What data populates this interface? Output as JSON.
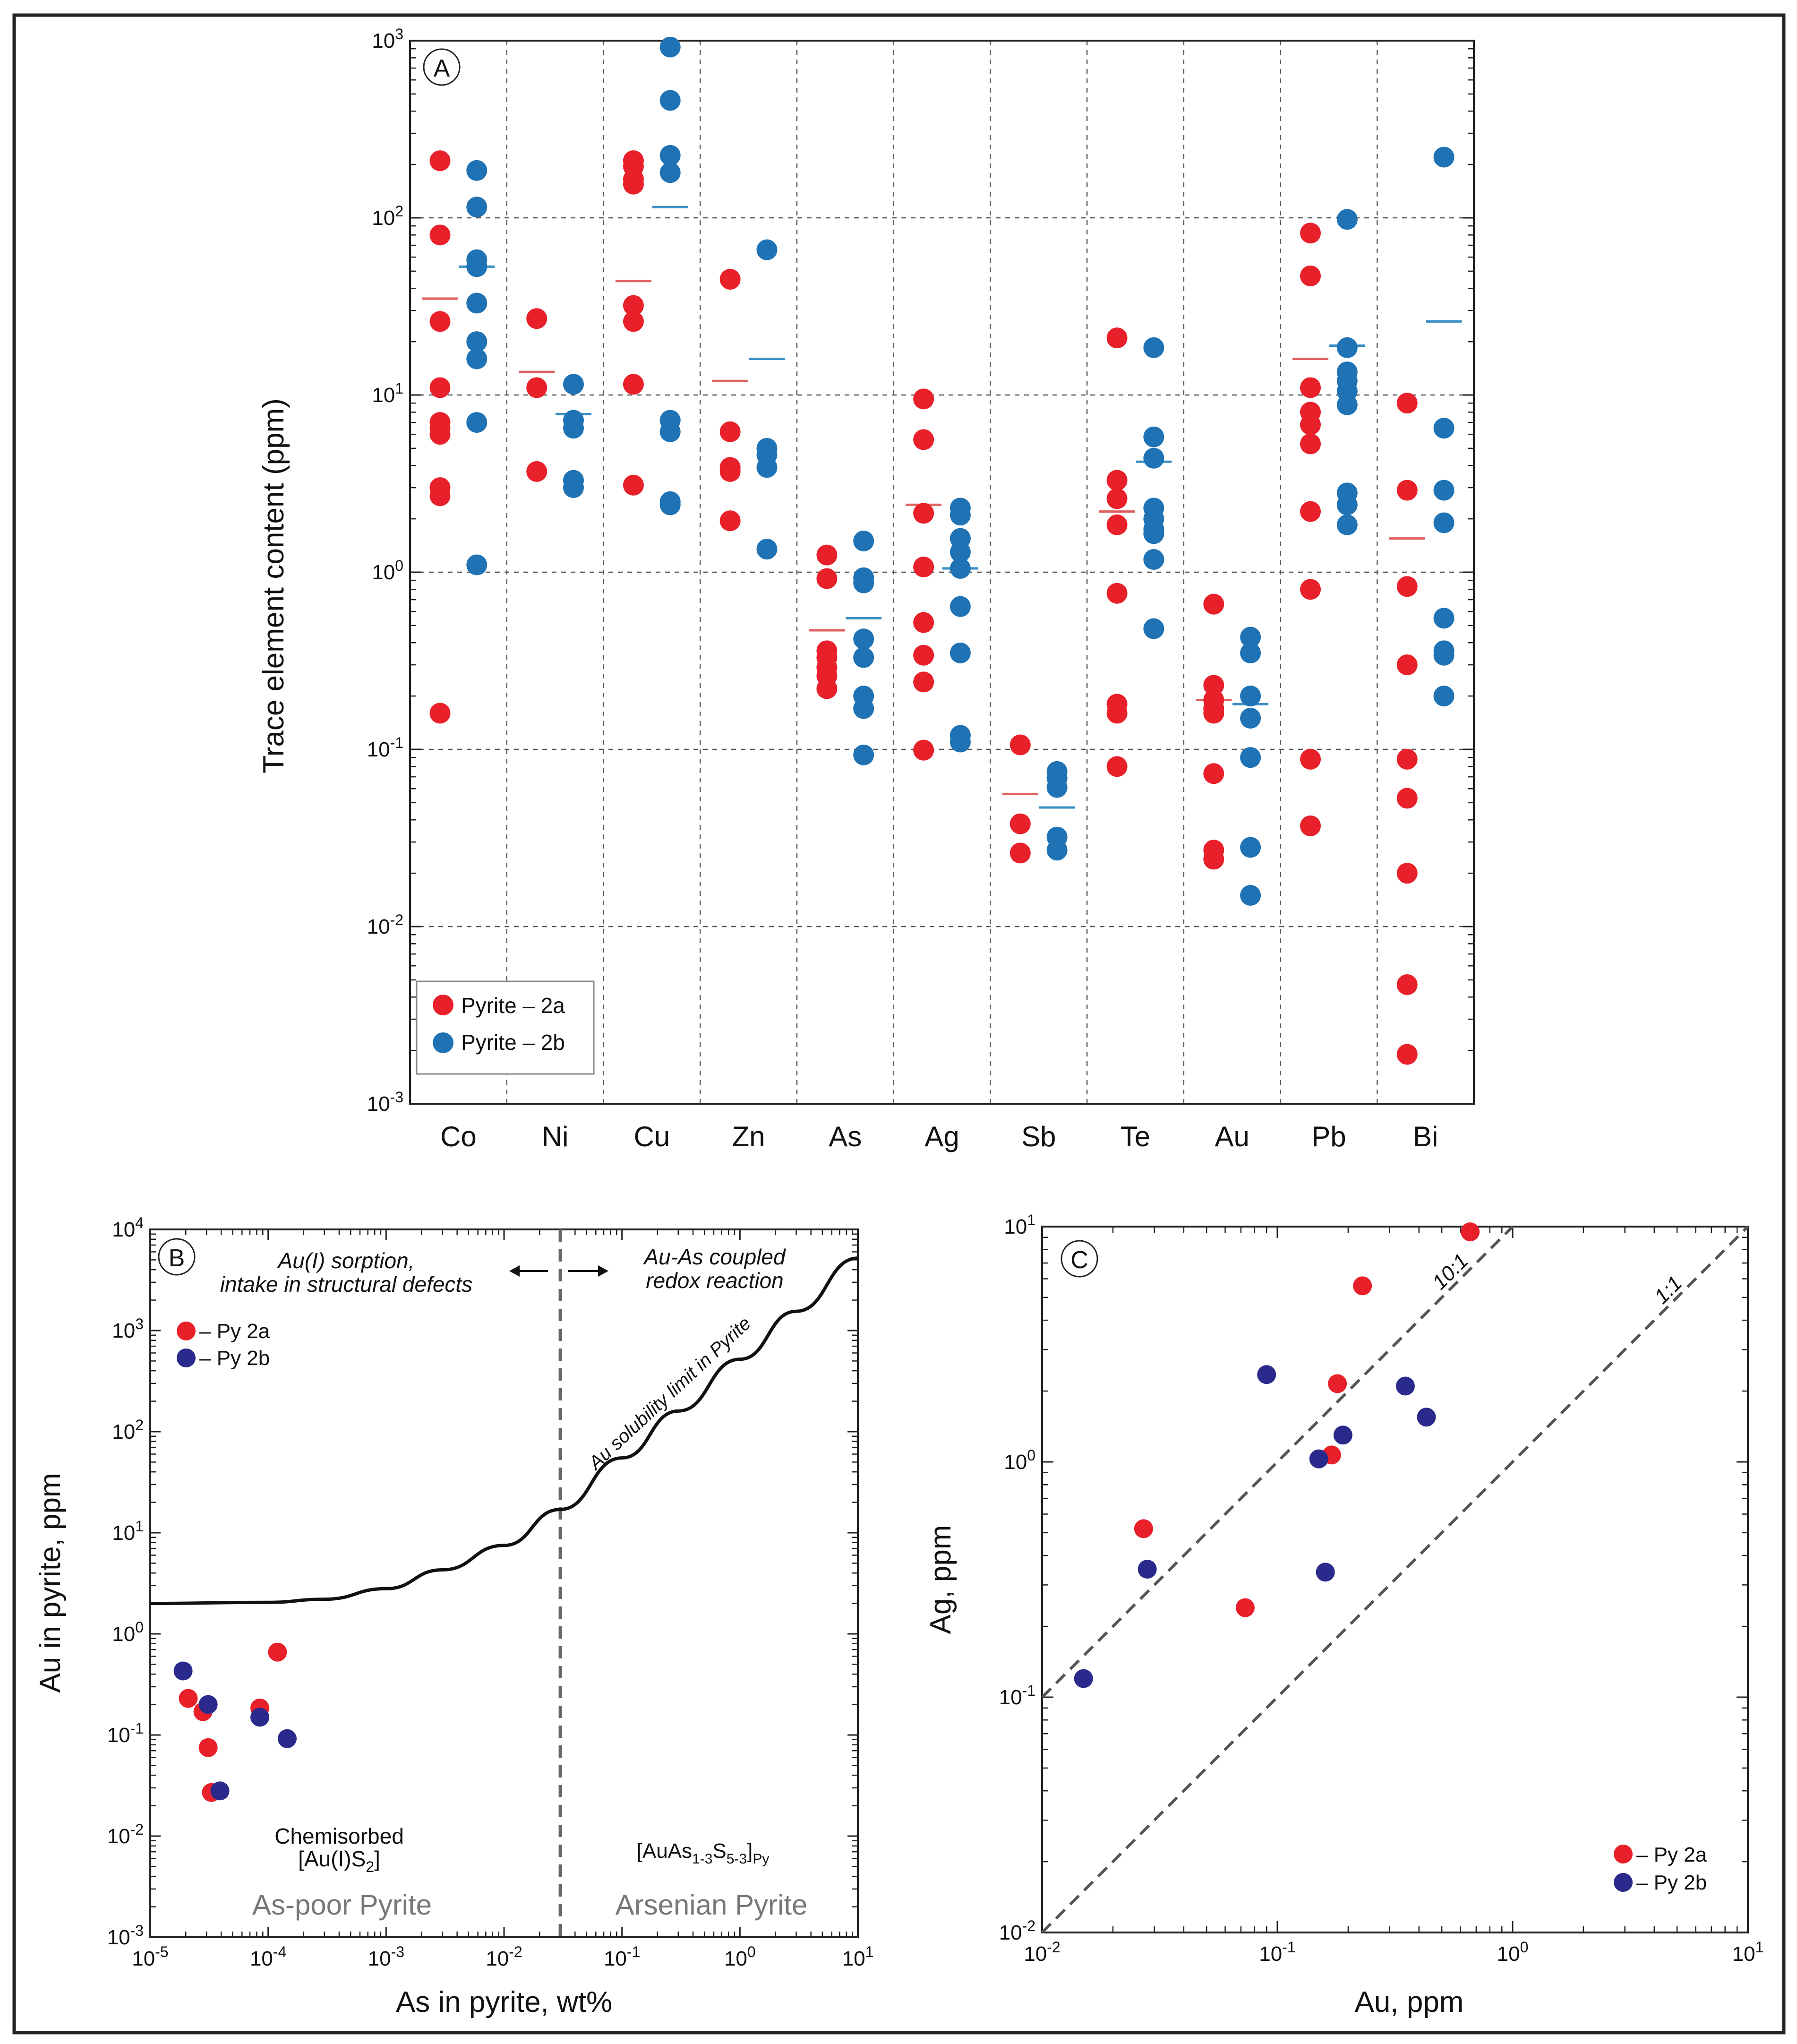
{
  "colors": {
    "py2a": "#e8202a",
    "py2b_A": "#1f73b4",
    "py2b_BC": "#2a2a8c",
    "mean2a": "#e06060",
    "mean2b": "#3a8ec4"
  },
  "chart_data": [
    {
      "panel": "A",
      "type": "scatter",
      "ylabel": "Trace element content (ppm)",
      "yscale": "log",
      "ylim": [
        0.001,
        1000
      ],
      "yticks": [
        {
          "base": "10",
          "exp": "-3"
        },
        {
          "base": "10",
          "exp": "-2"
        },
        {
          "base": "10",
          "exp": "-1"
        },
        {
          "base": "10",
          "exp": "0"
        },
        {
          "base": "10",
          "exp": "1"
        },
        {
          "base": "10",
          "exp": "2"
        },
        {
          "base": "10",
          "exp": "3"
        }
      ],
      "categories": [
        "Co",
        "Ni",
        "Cu",
        "Zn",
        "As",
        "Ag",
        "Sb",
        "Te",
        "Au",
        "Pb",
        "Bi"
      ],
      "legend": [
        "Pyrite – 2a",
        "Pyrite – 2b"
      ],
      "series": [
        {
          "name": "Pyrite – 2a",
          "values": {
            "Co": [
              210,
              80,
              26,
              11,
              7,
              6.5,
              6,
              3,
              2.7,
              0.16
            ],
            "Ni": [
              27,
              11,
              3.7
            ],
            "Cu": [
              210,
              195,
              165,
              155,
              32,
              26,
              11.5,
              3.1
            ],
            "Zn": [
              45,
              6.2,
              3.9,
              3.7,
              1.95
            ],
            "As": [
              1.25,
              0.92,
              0.36,
              0.33,
              0.29,
              0.26,
              0.22
            ],
            "Ag": [
              9.5,
              5.6,
              2.15,
              1.07,
              0.52,
              0.34,
              0.24,
              0.099
            ],
            "Sb": [
              0.106,
              0.038,
              0.026
            ],
            "Te": [
              21,
              3.3,
              2.6,
              1.85,
              0.76,
              0.18,
              0.16,
              0.08
            ],
            "Au": [
              0.66,
              0.23,
              0.19,
              0.17,
              0.16,
              0.073,
              0.027,
              0.024
            ],
            "Pb": [
              82,
              47,
              11,
              8,
              6.8,
              5.3,
              2.2,
              0.8,
              0.088,
              0.037
            ],
            "Bi": [
              9,
              2.9,
              0.83,
              0.3,
              0.088,
              0.053,
              0.02,
              0.0047,
              0.0019
            ]
          },
          "mean": {
            "Co": 35,
            "Ni": 13.5,
            "Cu": 44,
            "Zn": 12,
            "As": 0.47,
            "Ag": 2.4,
            "Sb": 0.056,
            "Te": 2.2,
            "Au": 0.19,
            "Pb": 16,
            "Bi": 1.55
          }
        },
        {
          "name": "Pyrite – 2b",
          "values": {
            "Co": [
              185,
              115,
              58,
              53,
              33,
              20,
              16,
              7,
              1.1
            ],
            "Ni": [
              11.5,
              7.2,
              6.5,
              3.3,
              3.0
            ],
            "Cu": [
              920,
              460,
              225,
              180,
              7.2,
              6.2,
              2.5,
              2.4
            ],
            "Zn": [
              66,
              5,
              4.6,
              3.9,
              1.35
            ],
            "As": [
              1.5,
              0.93,
              0.87,
              0.42,
              0.33,
              0.2,
              0.17,
              0.093
            ],
            "Ag": [
              2.3,
              2.1,
              1.55,
              1.3,
              1.05,
              0.64,
              0.35,
              0.12,
              0.11
            ],
            "Sb": [
              0.075,
              0.069,
              0.061,
              0.032,
              0.027
            ],
            "Te": [
              18.5,
              5.8,
              4.4,
              2.3,
              2.0,
              1.75,
              1.65,
              1.18,
              0.48
            ],
            "Au": [
              0.43,
              0.35,
              0.2,
              0.15,
              0.09,
              0.028,
              0.015
            ],
            "Pb": [
              98,
              18.5,
              13.5,
              12,
              10.5,
              8.8,
              2.8,
              2.4,
              1.85
            ],
            "Bi": [
              220,
              6.5,
              2.9,
              1.9,
              0.55,
              0.36,
              0.34,
              0.2
            ]
          },
          "mean": {
            "Co": 53,
            "Ni": 7.8,
            "Cu": 115,
            "Zn": 16,
            "As": 0.55,
            "Ag": 1.05,
            "Sb": 0.047,
            "Te": 4.2,
            "Au": 0.18,
            "Pb": 19,
            "Bi": 26
          }
        }
      ]
    },
    {
      "panel": "B",
      "type": "scatter",
      "xlabel": "As in pyrite, wt%",
      "ylabel": "Au in pyrite, ppm",
      "xscale": "log",
      "yscale": "log",
      "xlim": [
        1e-05,
        10
      ],
      "ylim": [
        0.001,
        10000
      ],
      "xticks": [
        {
          "base": "10",
          "exp": "-5"
        },
        {
          "base": "10",
          "exp": "-4"
        },
        {
          "base": "10",
          "exp": "-3"
        },
        {
          "base": "10",
          "exp": "-2"
        },
        {
          "base": "10",
          "exp": "-1"
        },
        {
          "base": "10",
          "exp": "0"
        },
        {
          "base": "10",
          "exp": "1"
        }
      ],
      "yticks": [
        {
          "base": "10",
          "exp": "-3"
        },
        {
          "base": "10",
          "exp": "-2"
        },
        {
          "base": "10",
          "exp": "-1"
        },
        {
          "base": "10",
          "exp": "0"
        },
        {
          "base": "10",
          "exp": "1"
        },
        {
          "base": "10",
          "exp": "2"
        },
        {
          "base": "10",
          "exp": "3"
        },
        {
          "base": "10",
          "exp": "4"
        }
      ],
      "legend": [
        "– Py 2a",
        "– Py 2b"
      ],
      "series": [
        {
          "name": "– Py 2a",
          "points": [
            [
              2.1e-05,
              0.23
            ],
            [
              2.8e-05,
              0.17
            ],
            [
              3.1e-05,
              0.075
            ],
            [
              3.3e-05,
              0.027
            ],
            [
              8.5e-05,
              0.185
            ],
            [
              0.00012,
              0.66
            ]
          ]
        },
        {
          "name": "– Py 2b",
          "points": [
            [
              1.9e-05,
              0.43
            ],
            [
              3.1e-05,
              0.2
            ],
            [
              3.9e-05,
              0.028
            ],
            [
              8.5e-05,
              0.15
            ],
            [
              0.000145,
              0.092
            ]
          ]
        }
      ],
      "solubility_curve": [
        [
          1e-05,
          2
        ],
        [
          0.0001,
          2.05
        ],
        [
          0.0003,
          2.2
        ],
        [
          0.001,
          2.8
        ],
        [
          0.003,
          4.3
        ],
        [
          0.01,
          7.5
        ],
        [
          0.03,
          17
        ],
        [
          0.1,
          55
        ],
        [
          0.3,
          160
        ],
        [
          1,
          520
        ],
        [
          3,
          1550
        ],
        [
          10,
          5200
        ]
      ],
      "divider_x": 0.03,
      "annotations": {
        "left_heading_line1": "Au(I) sorption,",
        "left_heading_line2": "intake in structural defects",
        "right_heading_line1": "Au-As coupled",
        "right_heading_line2": "redox reaction",
        "curve_label": "Au solubility limit in Pyrite",
        "chemisorbed_line1": "Chemisorbed",
        "chemisorbed_line2": "[Au(I)S",
        "chemisorbed_sub": "2",
        "chemisorbed_close": "]",
        "arsenian_formula_a": "[AuAs",
        "arsenian_sub1": "1-3",
        "arsenian_formula_b": "S",
        "arsenian_sub2": "5-3",
        "arsenian_formula_c": "]",
        "arsenian_sub3": "Py",
        "zone_left": "As-poor Pyrite",
        "zone_right": "Arsenian Pyrite"
      }
    },
    {
      "panel": "C",
      "type": "scatter",
      "xlabel": "Au, ppm",
      "ylabel": "Ag, ppm",
      "xscale": "log",
      "yscale": "log",
      "xlim": [
        0.01,
        10
      ],
      "ylim": [
        0.01,
        10
      ],
      "xticks": [
        {
          "base": "10",
          "exp": "-2"
        },
        {
          "base": "10",
          "exp": "-1"
        },
        {
          "base": "10",
          "exp": "0"
        },
        {
          "base": "10",
          "exp": "1"
        }
      ],
      "yticks": [
        {
          "base": "10",
          "exp": "-2"
        },
        {
          "base": "10",
          "exp": "-1"
        },
        {
          "base": "10",
          "exp": "0"
        },
        {
          "base": "10",
          "exp": "1"
        }
      ],
      "legend": [
        "– Py 2a",
        "– Py 2b"
      ],
      "reference_lines": [
        {
          "label": "10:1",
          "ratio": 10
        },
        {
          "label": "1:1",
          "ratio": 1
        }
      ],
      "series": [
        {
          "name": "– Py 2a",
          "points": [
            [
              0.66,
              9.5
            ],
            [
              0.23,
              5.6
            ],
            [
              0.18,
              2.15
            ],
            [
              0.17,
              1.07
            ],
            [
              0.027,
              0.52
            ],
            [
              0.073,
              0.24
            ]
          ]
        },
        {
          "name": "– Py 2b",
          "points": [
            [
              0.09,
              2.35
            ],
            [
              0.35,
              2.1
            ],
            [
              0.43,
              1.55
            ],
            [
              0.19,
              1.3
            ],
            [
              0.15,
              1.03
            ],
            [
              0.028,
              0.35
            ],
            [
              0.16,
              0.34
            ],
            [
              0.015,
              0.12
            ]
          ]
        }
      ]
    }
  ]
}
